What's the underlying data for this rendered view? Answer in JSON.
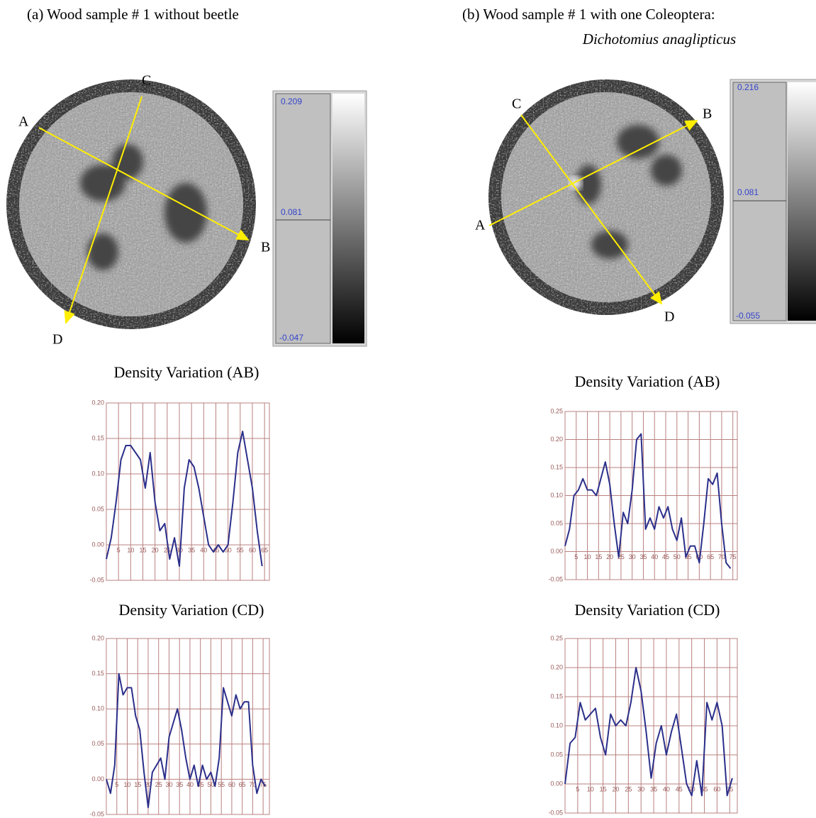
{
  "panels": [
    {
      "caption": "(a) Wood sample # 1 without beetle",
      "image": {
        "labels": [
          "A",
          "B",
          "C",
          "D"
        ],
        "scale": [
          "0.209",
          "0.081",
          "-0.047"
        ]
      }
    },
    {
      "caption": "(b) Wood sample # 1 with one Coleoptera:",
      "species": "Dichotomius anaglipticus",
      "image": {
        "labels": [
          "A",
          "B",
          "C",
          "D"
        ],
        "scale": [
          "0.216",
          "0.081",
          "-0.055"
        ]
      }
    }
  ],
  "chart_data": [
    {
      "type": "line",
      "title": "Density Variation (AB)",
      "color": "#2b2f8a",
      "grid": true,
      "x": [
        0,
        2,
        4,
        6,
        8,
        10,
        12,
        14,
        16,
        18,
        20,
        22,
        24,
        26,
        28,
        30,
        32,
        34,
        36,
        38,
        40,
        42,
        44,
        46,
        48,
        50,
        52,
        54,
        56,
        58,
        60,
        62,
        64
      ],
      "values": [
        -0.02,
        0.01,
        0.06,
        0.12,
        0.14,
        0.14,
        0.13,
        0.12,
        0.08,
        0.13,
        0.06,
        0.02,
        0.03,
        -0.02,
        0.01,
        -0.03,
        0.08,
        0.12,
        0.11,
        0.08,
        0.04,
        0.0,
        -0.01,
        0.0,
        -0.01,
        0.0,
        0.06,
        0.13,
        0.16,
        0.12,
        0.08,
        0.02,
        -0.03
      ],
      "xlim": [
        0,
        67
      ],
      "ylim": [
        -0.05,
        0.2
      ],
      "xticks": [
        5,
        10,
        15,
        20,
        25,
        30,
        35,
        40,
        45,
        50,
        55,
        60,
        65
      ],
      "yticks": [
        {
          "value": -0.05,
          "label": "-0.05"
        },
        {
          "value": 0,
          "label": "0.00"
        },
        {
          "value": 0.05,
          "label": "0.05"
        },
        {
          "value": 0.1,
          "label": "0.10"
        },
        {
          "value": 0.15,
          "label": "0.15"
        },
        {
          "value": 0.2,
          "label": "0.20"
        }
      ]
    },
    {
      "type": "line",
      "title": "Density Variation (CD)",
      "color": "#2b2f8a",
      "grid": true,
      "x": [
        0,
        2,
        4,
        6,
        8,
        10,
        12,
        14,
        16,
        18,
        20,
        22,
        24,
        26,
        28,
        30,
        32,
        34,
        36,
        38,
        40,
        42,
        44,
        46,
        48,
        50,
        52,
        54,
        56,
        58,
        60,
        62,
        64,
        66,
        68,
        70,
        72,
        74,
        76
      ],
      "values": [
        0.0,
        -0.02,
        0.02,
        0.15,
        0.12,
        0.13,
        0.13,
        0.09,
        0.07,
        0.01,
        -0.04,
        0.01,
        0.02,
        0.03,
        0.0,
        0.06,
        0.08,
        0.1,
        0.07,
        0.03,
        0.0,
        0.02,
        -0.01,
        0.02,
        0.0,
        0.01,
        -0.01,
        0.03,
        0.13,
        0.11,
        0.09,
        0.12,
        0.1,
        0.11,
        0.11,
        0.02,
        -0.02,
        0.0,
        -0.01
      ],
      "xlim": [
        0,
        78
      ],
      "ylim": [
        -0.05,
        0.2
      ],
      "xticks": [
        5,
        10,
        15,
        20,
        25,
        30,
        35,
        40,
        45,
        50,
        55,
        60,
        65,
        70,
        75
      ],
      "yticks": [
        {
          "value": -0.05,
          "label": "-0.05"
        },
        {
          "value": 0,
          "label": "0.00"
        },
        {
          "value": 0.05,
          "label": "0.05"
        },
        {
          "value": 0.1,
          "label": "0.10"
        },
        {
          "value": 0.15,
          "label": "0.15"
        },
        {
          "value": 0.2,
          "label": "0.20"
        }
      ]
    },
    {
      "type": "line",
      "title": "Density Variation (AB)",
      "color": "#2b2f8a",
      "grid": true,
      "x": [
        0,
        2,
        4,
        6,
        8,
        10,
        12,
        14,
        16,
        18,
        20,
        22,
        24,
        26,
        28,
        30,
        32,
        34,
        36,
        38,
        40,
        42,
        44,
        46,
        48,
        50,
        52,
        54,
        56,
        58,
        60,
        62,
        64,
        66,
        68,
        70,
        72,
        74
      ],
      "values": [
        0.01,
        0.04,
        0.1,
        0.11,
        0.13,
        0.11,
        0.11,
        0.1,
        0.13,
        0.16,
        0.12,
        0.05,
        -0.01,
        0.07,
        0.05,
        0.11,
        0.2,
        0.21,
        0.04,
        0.06,
        0.04,
        0.08,
        0.06,
        0.08,
        0.04,
        0.02,
        0.06,
        -0.01,
        0.01,
        0.01,
        -0.02,
        0.05,
        0.13,
        0.12,
        0.14,
        0.05,
        -0.02,
        -0.03
      ],
      "xlim": [
        0,
        77
      ],
      "ylim": [
        -0.05,
        0.25
      ],
      "xticks": [
        5,
        10,
        15,
        20,
        25,
        30,
        35,
        40,
        45,
        50,
        55,
        60,
        65,
        70,
        75
      ],
      "yticks": [
        {
          "value": -0.05,
          "label": "-0.05"
        },
        {
          "value": 0,
          "label": "0.00"
        },
        {
          "value": 0.05,
          "label": "0.05"
        },
        {
          "value": 0.1,
          "label": "0.10"
        },
        {
          "value": 0.15,
          "label": "0.15"
        },
        {
          "value": 0.2,
          "label": "0.20"
        },
        {
          "value": 0.25,
          "label": "0.25"
        }
      ]
    },
    {
      "type": "line",
      "title": "Density Variation (CD)",
      "color": "#2b2f8a",
      "grid": true,
      "x": [
        0,
        2,
        4,
        6,
        8,
        10,
        12,
        14,
        16,
        18,
        20,
        22,
        24,
        26,
        28,
        30,
        32,
        34,
        36,
        38,
        40,
        42,
        44,
        46,
        48,
        50,
        52,
        54,
        56,
        58,
        60,
        62,
        64,
        66
      ],
      "values": [
        0.0,
        0.07,
        0.08,
        0.14,
        0.11,
        0.12,
        0.13,
        0.08,
        0.05,
        0.12,
        0.1,
        0.11,
        0.1,
        0.14,
        0.2,
        0.16,
        0.09,
        0.01,
        0.07,
        0.1,
        0.05,
        0.09,
        0.12,
        0.06,
        0.0,
        -0.02,
        0.04,
        -0.02,
        0.14,
        0.11,
        0.14,
        0.1,
        -0.02,
        0.01
      ],
      "xlim": [
        0,
        68
      ],
      "ylim": [
        -0.05,
        0.25
      ],
      "xticks": [
        5,
        10,
        15,
        20,
        25,
        30,
        35,
        40,
        45,
        50,
        55,
        60,
        65
      ],
      "yticks": [
        {
          "value": -0.05,
          "label": "-0.05"
        },
        {
          "value": 0,
          "label": "0.00"
        },
        {
          "value": 0.05,
          "label": "0.05"
        },
        {
          "value": 0.1,
          "label": "0.10"
        },
        {
          "value": 0.15,
          "label": "0.15"
        },
        {
          "value": 0.2,
          "label": "0.20"
        },
        {
          "value": 0.25,
          "label": "0.25"
        }
      ]
    }
  ]
}
